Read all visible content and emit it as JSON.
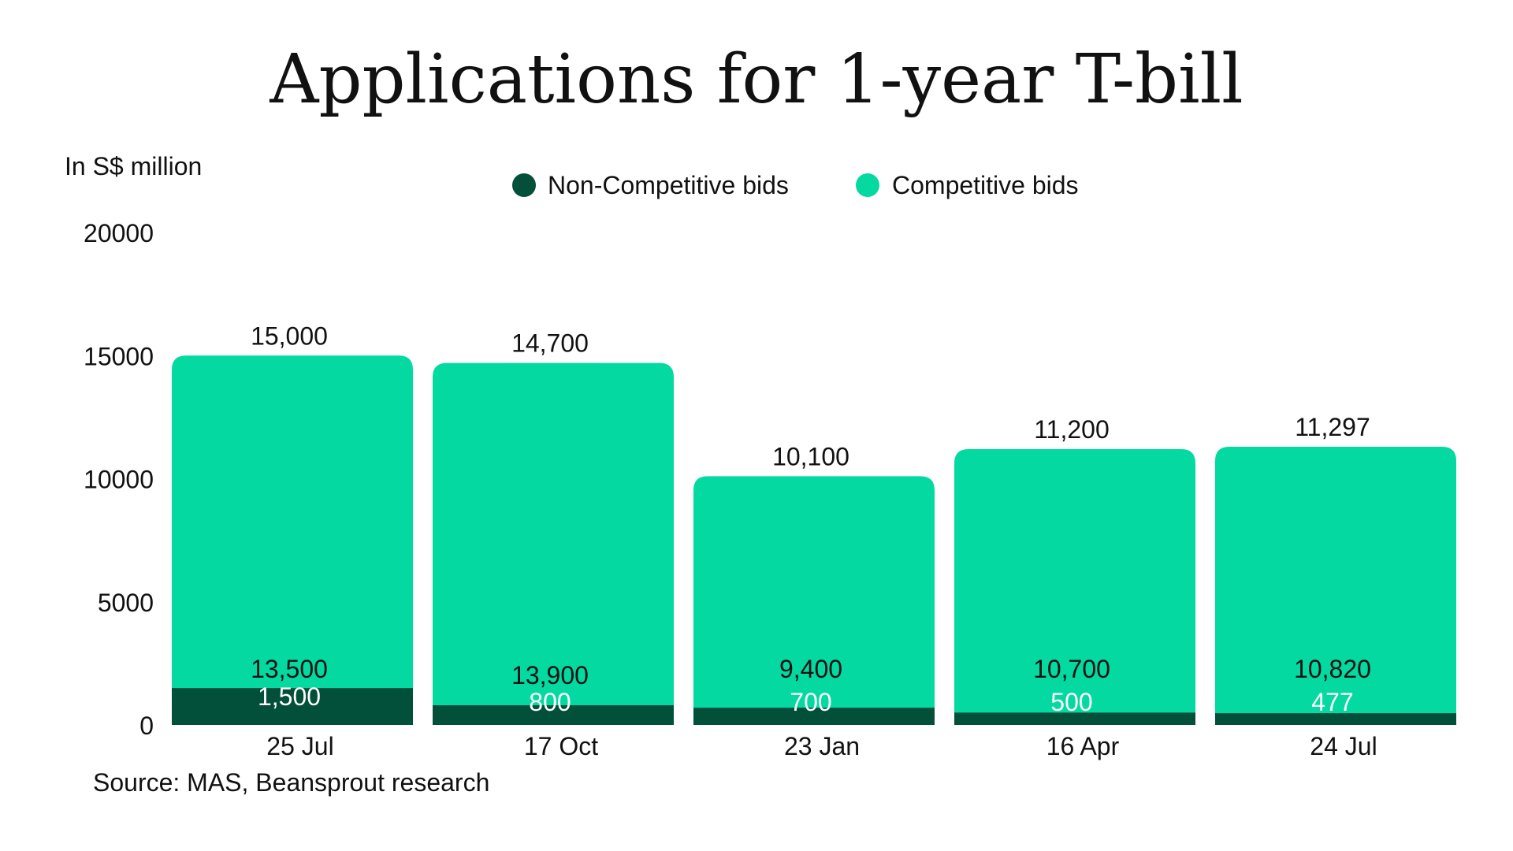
{
  "chart_data": {
    "type": "bar",
    "stacked": true,
    "title": "Applications for 1-year T-bill",
    "ylabel": "In S$ million",
    "xlabel": "",
    "ylim": [
      0,
      20000
    ],
    "yticks": [
      0,
      5000,
      10000,
      15000,
      20000
    ],
    "ytick_labels": [
      "0",
      "5000",
      "10000",
      "15000",
      "20000"
    ],
    "categories": [
      "25 Jul",
      "17 Oct",
      "23 Jan",
      "16 Apr",
      "24 Jul"
    ],
    "series": [
      {
        "name": "Non-Competitive bids",
        "color": "#03503a",
        "values": [
          1500,
          800,
          700,
          500,
          477
        ],
        "labels": [
          "1,500",
          "800",
          "700",
          "500",
          "477"
        ]
      },
      {
        "name": "Competitive bids",
        "color": "#03d9a0",
        "values": [
          13500,
          13900,
          9400,
          10700,
          10820
        ],
        "labels": [
          "13,500",
          "13,900",
          "9,400",
          "10,700",
          "10,820"
        ]
      }
    ],
    "totals": [
      15000,
      14700,
      10100,
      11200,
      11297
    ],
    "total_labels": [
      "15,000",
      "14,700",
      "10,100",
      "11,200",
      "11,297"
    ],
    "legend_position": "top-center",
    "grid": false,
    "source": "Source: MAS, Beansprout research"
  }
}
